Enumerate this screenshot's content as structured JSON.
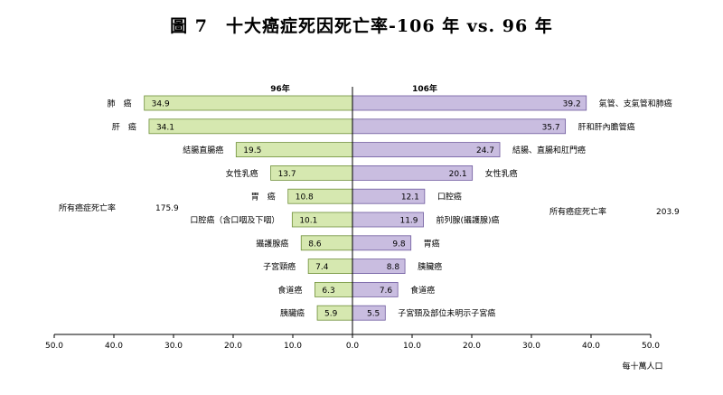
{
  "title": "圖 7　十大癌症死因死亡率-106 年 vs. 96 年",
  "colors": {
    "left_fill": "#d6e8b0",
    "left_stroke": "#6f8f3a",
    "right_fill": "#c9bde0",
    "right_stroke": "#6f5a9e"
  },
  "chart_data": {
    "type": "bar",
    "orientation": "horizontal-butterfly",
    "xlim": [
      -50,
      50
    ],
    "x_ticks": [
      "50.0",
      "40.0",
      "30.0",
      "20.0",
      "10.0",
      "0.0",
      "10.0",
      "20.0",
      "30.0",
      "40.0",
      "50.0"
    ],
    "unit": "每十萬人口",
    "left": {
      "name": "96年",
      "total_label": "所有癌症死亡率",
      "total_value": "175.9",
      "categories": [
        "肺　癌",
        "肝　癌",
        "結腸直腸癌",
        "女性乳癌",
        "胃　癌",
        "口腔癌（含口咽及下咽）",
        "攝護腺癌",
        "子宮頸癌",
        "食道癌",
        "胰臟癌"
      ],
      "values": [
        34.9,
        34.1,
        19.5,
        13.7,
        10.8,
        10.1,
        8.6,
        7.4,
        6.3,
        5.9
      ]
    },
    "right": {
      "name": "106年",
      "total_label": "所有癌症死亡率",
      "total_value": "203.9",
      "categories": [
        "氣管、支氣管和肺癌",
        "肝和肝內膽管癌",
        "結腸、直腸和肛門癌",
        "女性乳癌",
        "口腔癌",
        "前列腺(攝護腺)癌",
        "胃癌",
        "胰臟癌",
        "食道癌",
        "子宮頸及部位未明示子宮癌"
      ],
      "values": [
        39.2,
        35.7,
        24.7,
        20.1,
        12.1,
        11.9,
        9.8,
        8.8,
        7.6,
        5.5
      ]
    }
  }
}
